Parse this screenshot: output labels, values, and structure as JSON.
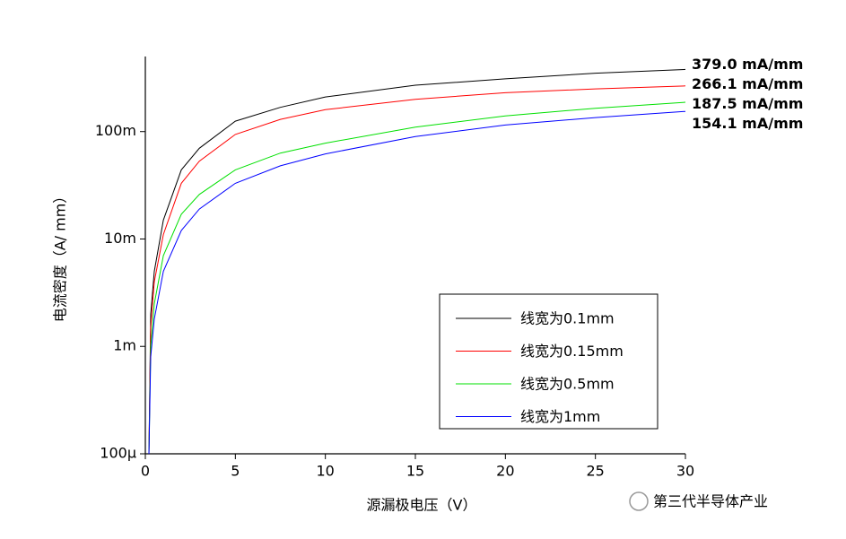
{
  "chart_data": {
    "type": "line",
    "xlabel": "源漏极电压（V）",
    "ylabel": "电流密度（A/ mm）",
    "xlim": [
      0,
      30
    ],
    "xticks": [
      0,
      5,
      10,
      15,
      20,
      25,
      30
    ],
    "ylim": [
      0.0001,
      0.5
    ],
    "yscale": "log",
    "yticks": [
      {
        "value": 0.0001,
        "label": "100µ"
      },
      {
        "value": 0.001,
        "label": "1m"
      },
      {
        "value": 0.01,
        "label": "10m"
      },
      {
        "value": 0.1,
        "label": "100m"
      }
    ],
    "legend": "lower right",
    "x": [
      0.2,
      0.3,
      0.5,
      1,
      2,
      3,
      5,
      7.5,
      10,
      15,
      20,
      25,
      30
    ],
    "series": [
      {
        "name": "线宽为0.1mm",
        "color": "#000000",
        "end_label": "379.0 mA/mm",
        "values": [
          0.0001,
          0.002,
          0.005,
          0.015,
          0.044,
          0.07,
          0.125,
          0.168,
          0.21,
          0.27,
          0.31,
          0.35,
          0.379
        ]
      },
      {
        "name": "线宽为0.15mm",
        "color": "#ff0000",
        "end_label": "266.1 mA/mm",
        "values": [
          0.0001,
          0.0015,
          0.004,
          0.011,
          0.033,
          0.053,
          0.094,
          0.13,
          0.16,
          0.2,
          0.23,
          0.25,
          0.2661
        ]
      },
      {
        "name": "线宽为0.5mm",
        "color": "#00e000",
        "end_label": "187.5 mA/mm",
        "values": [
          0.0001,
          0.001,
          0.0025,
          0.007,
          0.017,
          0.026,
          0.044,
          0.063,
          0.078,
          0.11,
          0.14,
          0.165,
          0.1875
        ]
      },
      {
        "name": "线宽为1mm",
        "color": "#0000ff",
        "end_label": "154.1 mA/mm",
        "values": [
          0.0001,
          0.0008,
          0.0018,
          0.005,
          0.012,
          0.019,
          0.033,
          0.048,
          0.062,
          0.09,
          0.115,
          0.135,
          0.1541
        ]
      }
    ]
  },
  "watermark": "第三代半导体产业"
}
